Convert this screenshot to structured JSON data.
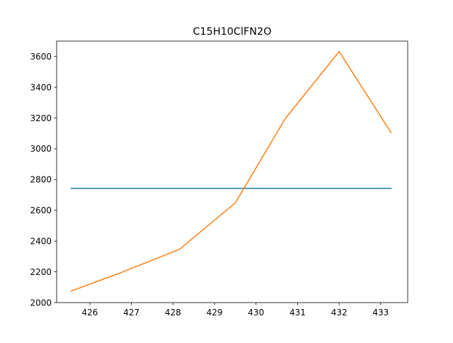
{
  "chart_data": {
    "type": "line",
    "title": "C15H10ClFN2O",
    "xlabel": "",
    "ylabel": "",
    "xlim": [
      425.2,
      433.65
    ],
    "ylim": [
      2000,
      3700
    ],
    "xticks": [
      426,
      427,
      428,
      429,
      430,
      431,
      432,
      433
    ],
    "yticks": [
      2000,
      2200,
      2400,
      2600,
      2800,
      3000,
      3200,
      3400,
      3600
    ],
    "grid": false,
    "series": [
      {
        "color": "#1f77b4",
        "x": [
          425.55,
          433.25
        ],
        "y": [
          2743,
          2743
        ]
      },
      {
        "color": "#ff7f0e",
        "x": [
          425.55,
          426.7,
          428.15,
          429.5,
          430.7,
          432.0,
          433.25
        ],
        "y": [
          2075,
          2190,
          2345,
          2648,
          3195,
          3632,
          3105
        ]
      }
    ]
  }
}
